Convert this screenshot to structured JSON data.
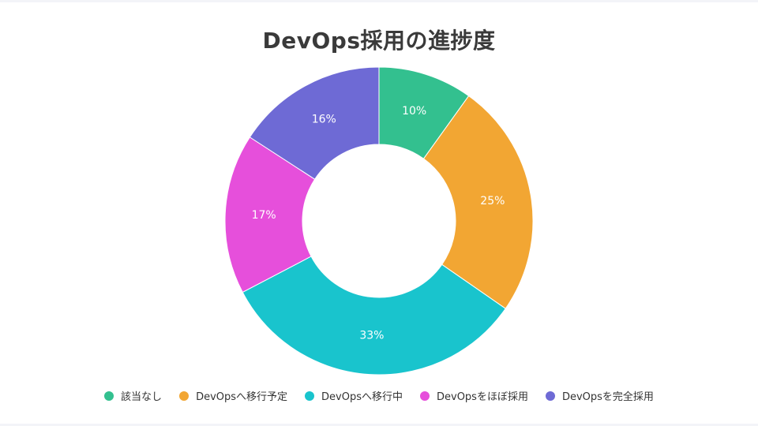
{
  "title": "DevOps採用の進捗度",
  "chart_data": {
    "type": "pie",
    "style": "donut",
    "title": "DevOps採用の進捗度",
    "legend_position": "bottom",
    "categories": [
      "該当なし",
      "DevOpsへ移行予定",
      "DevOpsへ移行中",
      "DevOpsをほぼ採用",
      "DevOpsを完全採用"
    ],
    "values": [
      10,
      25,
      33,
      17,
      16
    ],
    "labels": [
      "10%",
      "25%",
      "33%",
      "17%",
      "16%"
    ],
    "colors": [
      "#33c08f",
      "#f2a633",
      "#19c4cd",
      "#e64fdb",
      "#6e6ad5"
    ]
  }
}
